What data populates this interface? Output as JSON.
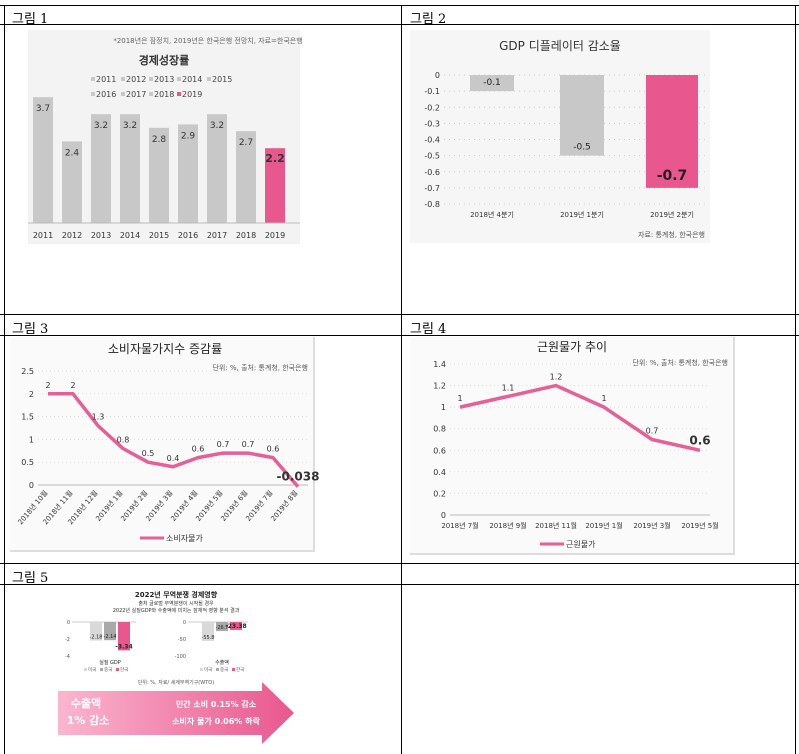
{
  "captions": [
    "그림 1",
    "그림 2",
    "그림 3",
    "그림 4",
    "그림 5"
  ],
  "colors": {
    "gray_bar": "#c8c8c8",
    "pink": "#e8578e",
    "pink_light": "#f9c5d8",
    "line_pink": "#e65f97"
  },
  "chart_data": [
    {
      "type": "bar",
      "title": "경제성장률",
      "note": "*2018년은 잠정치, 2019년은 한국은행 전망치, 자료=한국은행",
      "legend": [
        "2011",
        "2012",
        "2013",
        "2014",
        "2015",
        "2016",
        "2017",
        "2018",
        "2019"
      ],
      "categories": [
        "2011",
        "2012",
        "2013",
        "2014",
        "2015",
        "2016",
        "2017",
        "2018",
        "2019"
      ],
      "values": [
        3.7,
        2.4,
        3.2,
        3.2,
        2.8,
        2.9,
        3.2,
        2.7,
        2.2
      ],
      "value_labels": [
        "3.7",
        "2.4",
        "3.2",
        "3.2",
        "2.8",
        "2.9",
        "3.2",
        "2.7",
        "2.2"
      ],
      "ylim": [
        0,
        4.5
      ]
    },
    {
      "type": "bar",
      "title": "GDP 디플레이터 감소율",
      "source": "자료: 통계청, 한국은행",
      "categories": [
        "2018년 4분기",
        "2019년 1분기",
        "2019년 2분기"
      ],
      "values": [
        -0.1,
        -0.5,
        -0.7
      ],
      "value_labels": [
        "-0.1",
        "-0.5",
        "-0.7"
      ],
      "ylim": [
        -0.8,
        0
      ],
      "yticks": [
        "0",
        "-0.1",
        "-0.2",
        "-0.3",
        "-0.4",
        "-0.5",
        "-0.6",
        "-0.7",
        "-0.8"
      ]
    },
    {
      "type": "line",
      "title": "소비자물가지수 증감률",
      "unit_note": "단위: %, 출처: 통계청, 한국은행",
      "legend": "소비자물가",
      "categories": [
        "2018년 10월",
        "2018년 11월",
        "2018년 12월",
        "2019년 1월",
        "2019년 2월",
        "2019년 3월",
        "2019년 4월",
        "2019년 5월",
        "2019년 6월",
        "2019년 7월",
        "2019년 8월"
      ],
      "values": [
        2,
        2,
        1.3,
        0.8,
        0.5,
        0.4,
        0.6,
        0.7,
        0.7,
        0.6,
        -0.038
      ],
      "value_labels": [
        "2",
        "2",
        "1.3",
        "0.8",
        "0.5",
        "0.4",
        "0.6",
        "0.7",
        "0.7",
        "0.6",
        "-0.038"
      ],
      "ylim": [
        0,
        2.5
      ],
      "yticks": [
        "0",
        "0.5",
        "1",
        "1.5",
        "2",
        "2.5"
      ]
    },
    {
      "type": "line",
      "title": "근원물가 추이",
      "unit_note": "단위: %, 출처: 통계청, 한국은행",
      "legend": "근원물가",
      "categories": [
        "2018년 7월",
        "2018년 9월",
        "2018년 11월",
        "2019년 1월",
        "2019년 3월",
        "2019년 5월"
      ],
      "values": [
        1,
        1.1,
        1.2,
        1,
        0.7,
        0.6
      ],
      "value_labels": [
        "1",
        "1.1",
        "1.2",
        "1",
        "0.7",
        "0.6"
      ],
      "ylim": [
        0,
        1.4
      ],
      "yticks": [
        "0",
        "0.2",
        "0.4",
        "0.6",
        "0.8",
        "1",
        "1.2",
        "1.4"
      ]
    },
    {
      "type": "bar",
      "title": "2022년 무역분쟁 경제영향",
      "subtitle1": "출처 글로벌 무역분쟁이 시작될 경우",
      "subtitle2": "2022년 실질GDP와 수출액에 미치는 잠재적 영향 분석 결과",
      "unit_note": "단위: %, 자료/ 세계무역기구(WTO)",
      "groups": [
        {
          "name": "실질 GDP",
          "series": [
            "미국",
            "중국",
            "한국"
          ],
          "values": [
            -2.18,
            -2.14,
            -3.34
          ],
          "value_labels": [
            "-2.18",
            "-2.14",
            "-3.34"
          ],
          "yticks": [
            "0",
            "-2",
            "-4"
          ]
        },
        {
          "name": "수출액",
          "series": [
            "미국",
            "중국",
            "한국"
          ],
          "values": [
            -55.8,
            -26.7,
            -23.38
          ],
          "value_labels": [
            "-55.8",
            "-26.7",
            "-23.38"
          ],
          "yticks": [
            "0",
            "-50",
            "-100"
          ]
        }
      ],
      "legend_items": [
        "미국",
        "중국",
        "한국"
      ],
      "arrow_left_line1": "수출액",
      "arrow_left_line2": "1% 감소",
      "arrow_right_line1": "민간 소비 0.15% 감소",
      "arrow_right_line2": "소비자 물가 0.06% 하락"
    }
  ]
}
